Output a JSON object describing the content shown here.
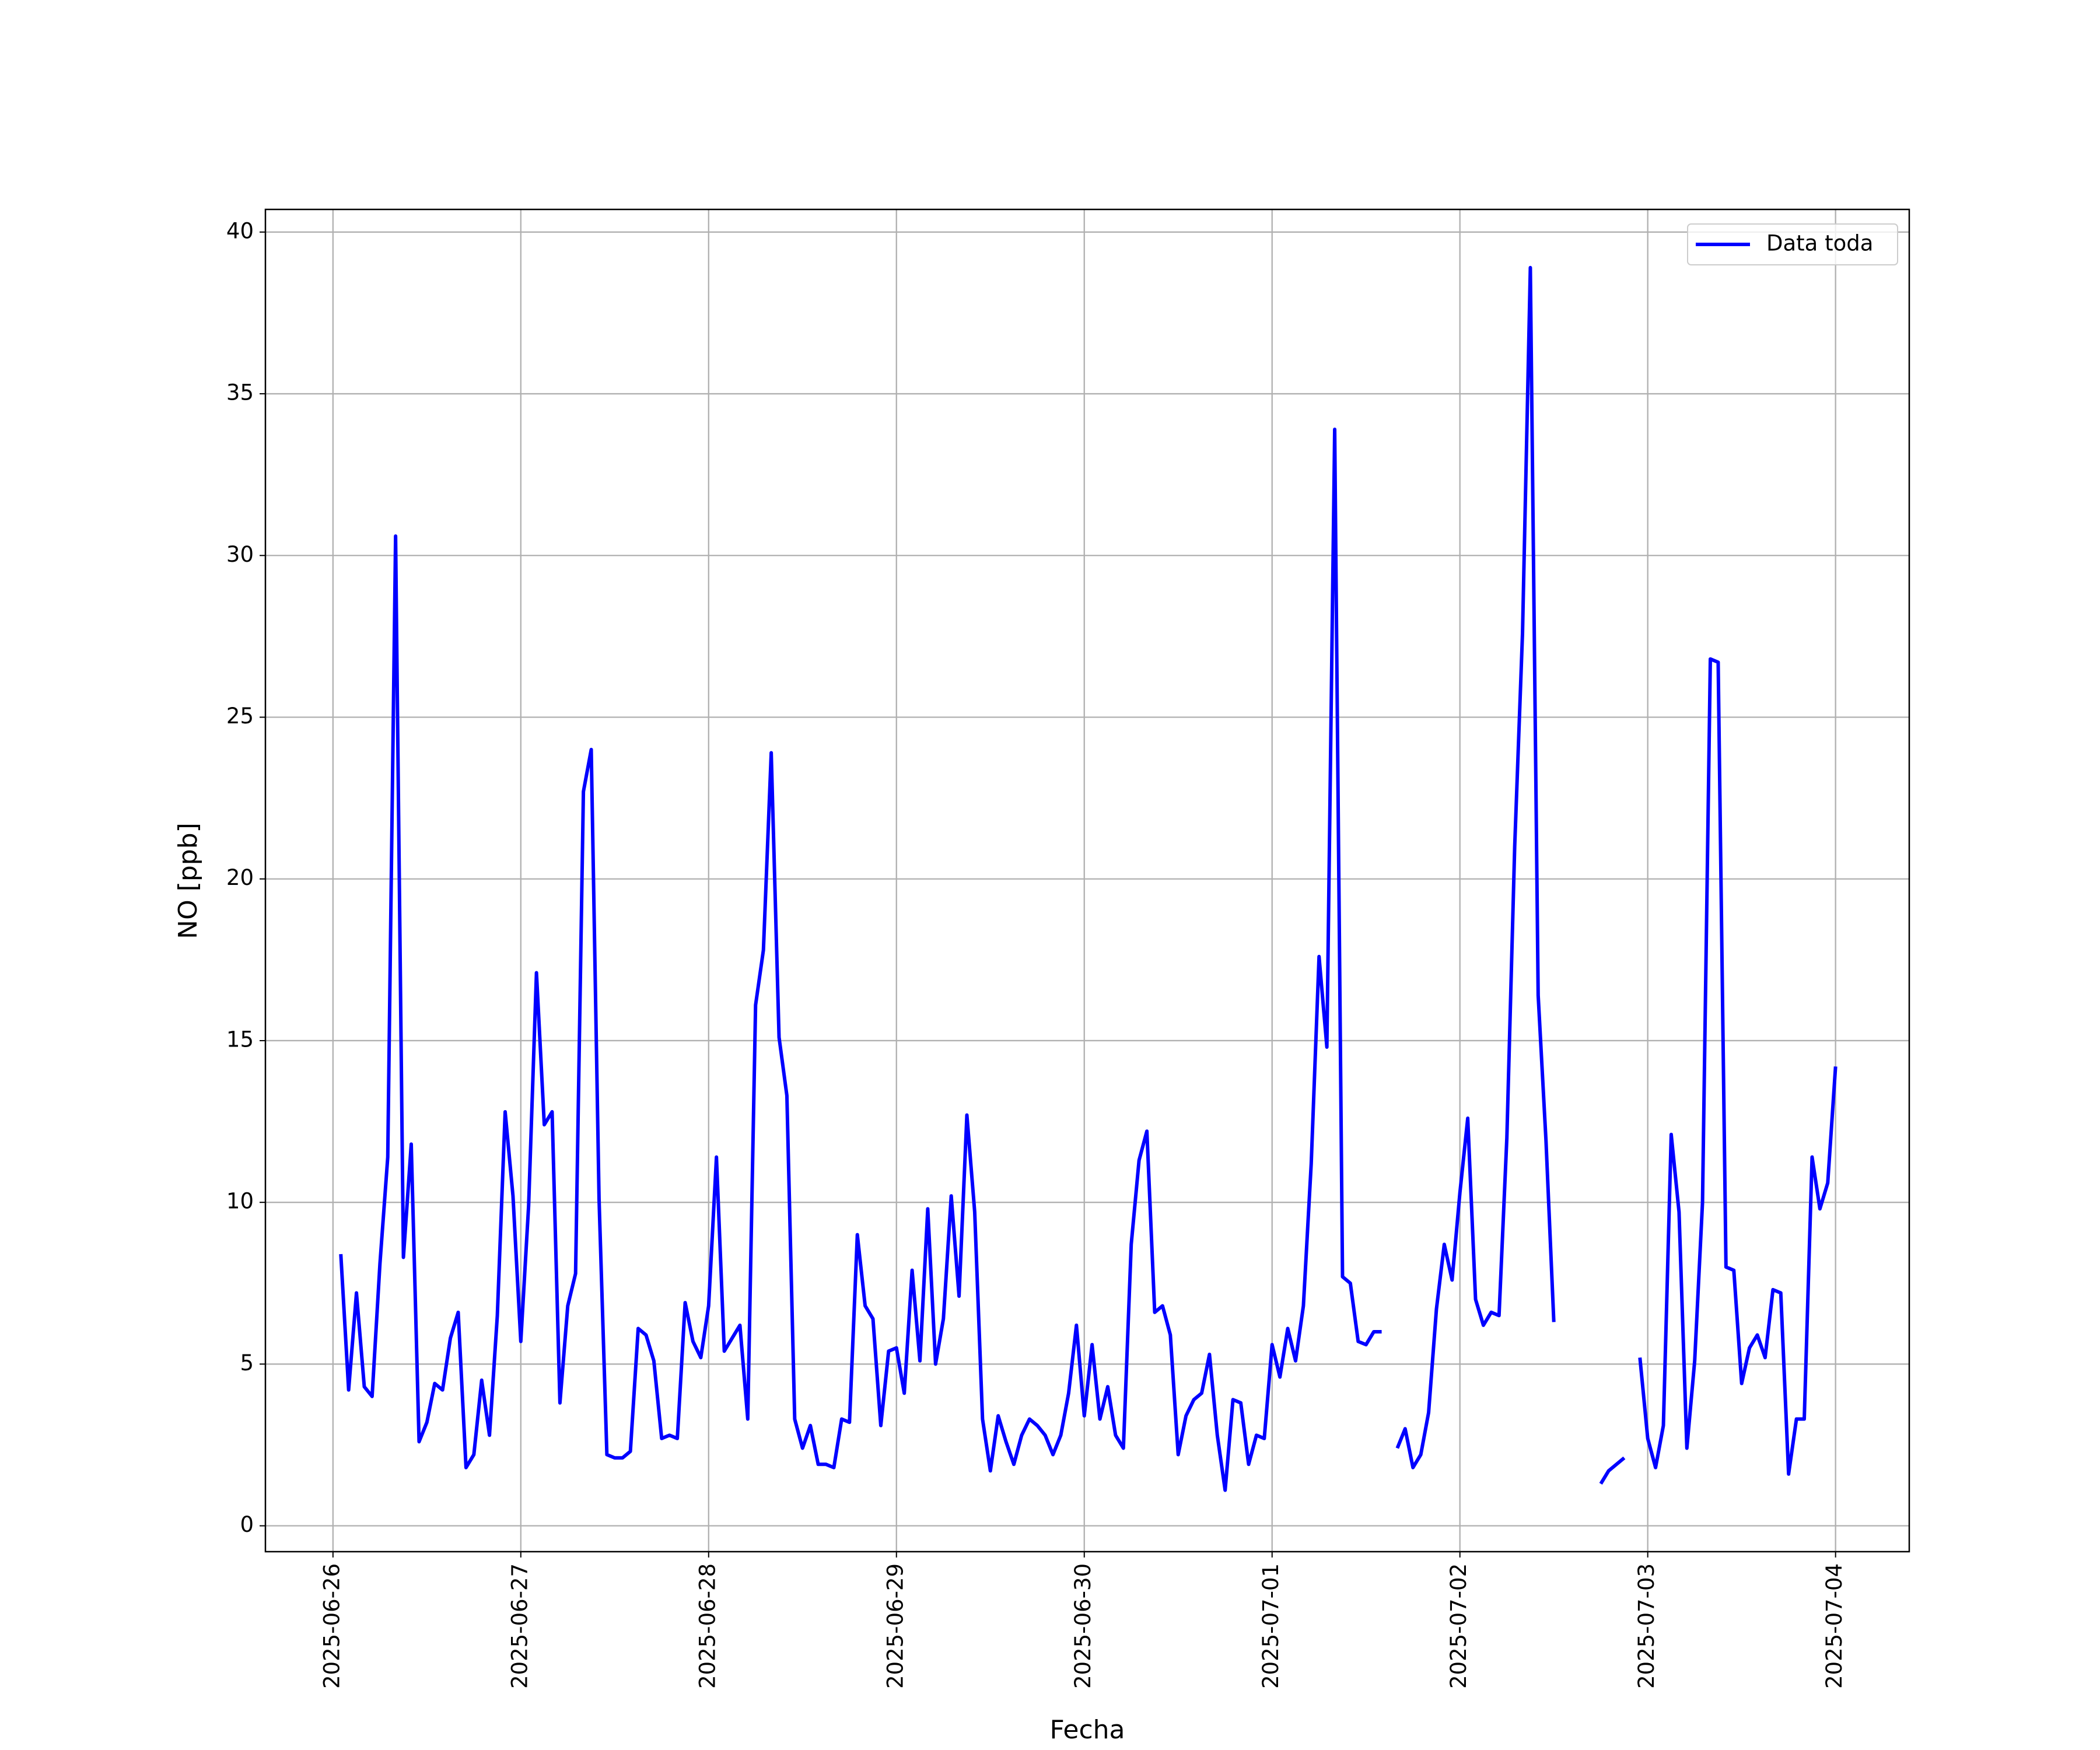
{
  "chart_data": {
    "type": "line",
    "x_label": "Fecha",
    "y_label": "NO [ppb]",
    "x": [
      "2025-06-26T01:00",
      "2025-06-26T02:00",
      "2025-06-26T03:00",
      "2025-06-26T04:00",
      "2025-06-26T05:00",
      "2025-06-26T06:00",
      "2025-06-26T07:00",
      "2025-06-26T08:00",
      "2025-06-26T09:00",
      "2025-06-26T10:00",
      "2025-06-26T11:00",
      "2025-06-26T12:00",
      "2025-06-26T13:00",
      "2025-06-26T14:00",
      "2025-06-26T15:00",
      "2025-06-26T16:00",
      "2025-06-26T17:00",
      "2025-06-26T18:00",
      "2025-06-26T19:00",
      "2025-06-26T20:00",
      "2025-06-26T21:00",
      "2025-06-26T22:00",
      "2025-06-26T23:00",
      "2025-06-27T00:00",
      "2025-06-27T01:00",
      "2025-06-27T02:00",
      "2025-06-27T03:00",
      "2025-06-27T04:00",
      "2025-06-27T05:00",
      "2025-06-27T06:00",
      "2025-06-27T07:00",
      "2025-06-27T08:00",
      "2025-06-27T09:00",
      "2025-06-27T10:00",
      "2025-06-27T11:00",
      "2025-06-27T12:00",
      "2025-06-27T13:00",
      "2025-06-27T14:00",
      "2025-06-27T15:00",
      "2025-06-27T16:00",
      "2025-06-27T17:00",
      "2025-06-27T18:00",
      "2025-06-27T19:00",
      "2025-06-27T20:00",
      "2025-06-27T21:00",
      "2025-06-27T22:00",
      "2025-06-27T23:00",
      "2025-06-28T00:00",
      "2025-06-28T01:00",
      "2025-06-28T02:00",
      "2025-06-28T03:00",
      "2025-06-28T04:00",
      "2025-06-28T05:00",
      "2025-06-28T06:00",
      "2025-06-28T07:00",
      "2025-06-28T08:00",
      "2025-06-28T09:00",
      "2025-06-28T10:00",
      "2025-06-28T11:00",
      "2025-06-28T12:00",
      "2025-06-28T13:00",
      "2025-06-28T14:00",
      "2025-06-28T15:00",
      "2025-06-28T16:00",
      "2025-06-28T17:00",
      "2025-06-28T18:00",
      "2025-06-28T19:00",
      "2025-06-28T20:00",
      "2025-06-28T21:00",
      "2025-06-28T22:00",
      "2025-06-28T23:00",
      "2025-06-29T00:00",
      "2025-06-29T01:00",
      "2025-06-29T02:00",
      "2025-06-29T03:00",
      "2025-06-29T04:00",
      "2025-06-29T05:00",
      "2025-06-29T06:00",
      "2025-06-29T07:00",
      "2025-06-29T08:00",
      "2025-06-29T09:00",
      "2025-06-29T10:00",
      "2025-06-29T11:00",
      "2025-06-29T12:00",
      "2025-06-29T13:00",
      "2025-06-29T14:00",
      "2025-06-29T15:00",
      "2025-06-29T16:00",
      "2025-06-29T17:00",
      "2025-06-29T18:00",
      "2025-06-29T19:00",
      "2025-06-29T20:00",
      "2025-06-29T21:00",
      "2025-06-29T22:00",
      "2025-06-29T23:00",
      "2025-06-30T00:00",
      "2025-06-30T01:00",
      "2025-06-30T02:00",
      "2025-06-30T03:00",
      "2025-06-30T04:00",
      "2025-06-30T05:00",
      "2025-06-30T06:00",
      "2025-06-30T07:00",
      "2025-06-30T08:00",
      "2025-06-30T09:00",
      "2025-06-30T10:00",
      "2025-06-30T11:00",
      "2025-06-30T12:00",
      "2025-06-30T13:00",
      "2025-06-30T14:00",
      "2025-06-30T15:00",
      "2025-06-30T16:00",
      "2025-06-30T17:00",
      "2025-06-30T18:00",
      "2025-06-30T19:00",
      "2025-06-30T20:00",
      "2025-06-30T21:00",
      "2025-06-30T22:00",
      "2025-06-30T23:00",
      "2025-07-01T00:00",
      "2025-07-01T01:00",
      "2025-07-01T02:00",
      "2025-07-01T03:00",
      "2025-07-01T04:00",
      "2025-07-01T05:00",
      "2025-07-01T06:00",
      "2025-07-01T07:00",
      "2025-07-01T08:00",
      "2025-07-01T09:00",
      "2025-07-01T10:00",
      "2025-07-01T11:00",
      "2025-07-01T12:00",
      "2025-07-01T13:00",
      "2025-07-01T14:00",
      "2025-07-01T15:00",
      "2025-07-01T16:00",
      "2025-07-01T17:00",
      "2025-07-01T18:00",
      "2025-07-01T19:00",
      "2025-07-01T20:00",
      "2025-07-01T21:00",
      "2025-07-01T22:00",
      "2025-07-01T23:00",
      "2025-07-02T00:00",
      "2025-07-02T01:00",
      "2025-07-02T02:00",
      "2025-07-02T03:00",
      "2025-07-02T04:00",
      "2025-07-02T05:00",
      "2025-07-02T06:00",
      "2025-07-02T07:00",
      "2025-07-02T08:00",
      "2025-07-02T09:00",
      "2025-07-02T10:00",
      "2025-07-02T11:00",
      "2025-07-02T12:00",
      "2025-07-02T13:00",
      "2025-07-02T14:00",
      "2025-07-02T15:00",
      "2025-07-02T16:00",
      "2025-07-02T17:00",
      "2025-07-02T18:00",
      "2025-07-02T19:00",
      "2025-07-02T20:00",
      "2025-07-02T21:00",
      "2025-07-02T22:00",
      "2025-07-02T23:00",
      "2025-07-03T00:00",
      "2025-07-03T01:00",
      "2025-07-03T02:00",
      "2025-07-03T03:00",
      "2025-07-03T04:00",
      "2025-07-03T05:00",
      "2025-07-03T06:00",
      "2025-07-03T07:00",
      "2025-07-03T08:00",
      "2025-07-03T09:00",
      "2025-07-03T10:00",
      "2025-07-03T11:00",
      "2025-07-03T12:00",
      "2025-07-03T13:00",
      "2025-07-03T14:00",
      "2025-07-03T15:00",
      "2025-07-03T16:00",
      "2025-07-03T17:00",
      "2025-07-03T18:00",
      "2025-07-03T19:00",
      "2025-07-03T20:00",
      "2025-07-03T21:00",
      "2025-07-03T22:00",
      "2025-07-03T23:00",
      "2025-07-04T00:00"
    ],
    "series": [
      {
        "name": "Data toda",
        "color": "#0000ff",
        "values": [
          8.4,
          4.2,
          7.2,
          4.3,
          4.0,
          8.1,
          11.4,
          30.6,
          8.3,
          11.8,
          2.6,
          3.2,
          4.4,
          4.2,
          5.8,
          6.6,
          1.8,
          2.2,
          4.5,
          2.8,
          6.5,
          12.8,
          10.2,
          5.7,
          9.9,
          17.1,
          12.4,
          12.8,
          3.8,
          6.8,
          7.8,
          22.7,
          24.0,
          10.1,
          2.2,
          2.1,
          2.1,
          2.3,
          6.1,
          5.9,
          5.1,
          2.7,
          2.8,
          2.7,
          6.9,
          5.7,
          5.2,
          6.8,
          11.4,
          5.4,
          5.8,
          6.2,
          3.3,
          16.1,
          17.8,
          23.9,
          15.1,
          13.3,
          3.3,
          2.4,
          3.1,
          1.9,
          1.9,
          1.8,
          3.3,
          3.2,
          9.0,
          6.8,
          6.4,
          3.1,
          5.4,
          5.5,
          4.1,
          7.9,
          5.1,
          9.8,
          5.0,
          6.4,
          10.2,
          7.1,
          12.7,
          9.7,
          3.3,
          1.7,
          3.4,
          2.6,
          1.9,
          2.8,
          3.3,
          3.1,
          2.8,
          2.2,
          2.8,
          4.1,
          6.2,
          3.4,
          5.6,
          3.3,
          4.3,
          2.8,
          2.4,
          8.7,
          11.3,
          12.2,
          6.6,
          6.8,
          5.9,
          2.2,
          3.4,
          3.9,
          4.1,
          5.3,
          2.8,
          1.1,
          3.9,
          3.8,
          1.9,
          2.8,
          2.7,
          5.6,
          4.6,
          6.1,
          5.1,
          6.8,
          11.2,
          17.6,
          14.8,
          33.9,
          7.7,
          7.5,
          5.7,
          5.6,
          6.0,
          6.0,
          null,
          2.4,
          3.0,
          1.8,
          2.2,
          3.5,
          6.7,
          8.7,
          7.6,
          10.3,
          12.6,
          7.0,
          6.2,
          6.6,
          6.5,
          12.0,
          21.0,
          27.6,
          38.9,
          16.4,
          11.9,
          6.3,
          null,
          null,
          null,
          null,
          null,
          1.3,
          1.7,
          1.9,
          2.1,
          null,
          5.2,
          2.7,
          1.8,
          3.1,
          12.1,
          9.7,
          2.4,
          5.1,
          10.0,
          26.8,
          26.7,
          8.0,
          7.9,
          4.4,
          5.5,
          5.9,
          5.2,
          7.3,
          7.2,
          1.6,
          3.3,
          3.3,
          11.4,
          9.8,
          10.6,
          14.2
        ]
      }
    ],
    "xlim": [
      "2025-06-25T15:22",
      "2025-07-04T09:25"
    ],
    "xticks": [
      "2025-06-26",
      "2025-06-27",
      "2025-06-28",
      "2025-06-29",
      "2025-06-30",
      "2025-07-01",
      "2025-07-02",
      "2025-07-03",
      "2025-07-04"
    ],
    "ylim": [
      -0.8,
      40.7
    ],
    "yticks": [
      0,
      5,
      10,
      15,
      20,
      25,
      30,
      35,
      40
    ],
    "grid": true,
    "legend": "upper right"
  }
}
